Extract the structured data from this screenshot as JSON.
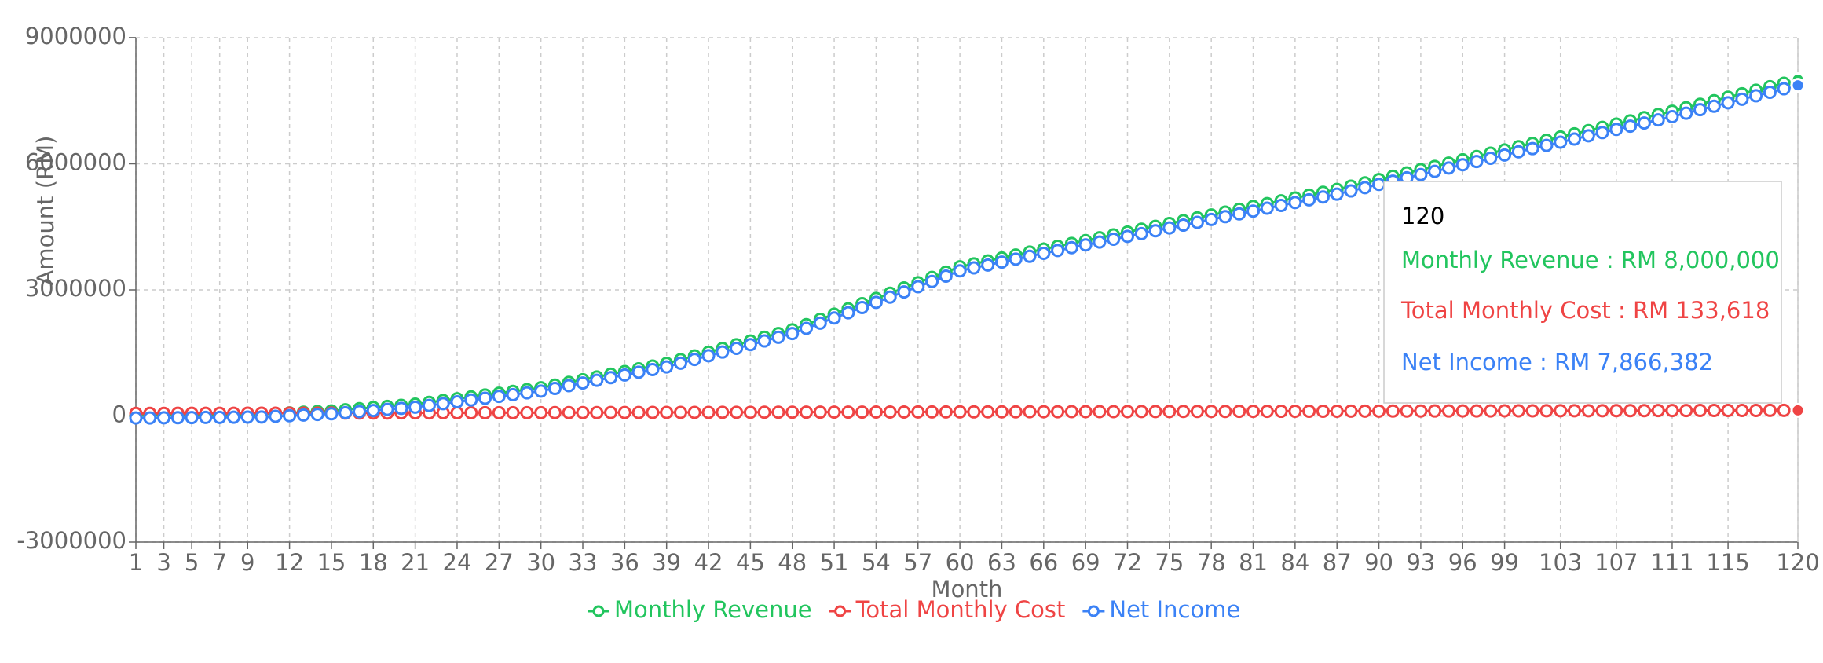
{
  "chart_data": {
    "type": "line",
    "x_label": "Month",
    "y_label": "Amount (RM)",
    "categories": [
      1,
      null,
      3,
      null,
      5,
      null,
      7,
      null,
      9,
      null,
      null,
      12,
      null,
      null,
      15,
      null,
      null,
      18,
      null,
      null,
      21,
      null,
      null,
      24,
      null,
      null,
      27,
      null,
      null,
      30,
      null,
      null,
      33,
      null,
      null,
      36,
      null,
      null,
      39,
      null,
      null,
      42,
      null,
      null,
      45,
      null,
      null,
      48,
      null,
      null,
      51,
      null,
      null,
      54,
      null,
      null,
      57,
      null,
      null,
      60,
      null,
      null,
      63,
      null,
      null,
      66,
      null,
      null,
      69,
      null,
      null,
      72,
      null,
      null,
      75,
      null,
      null,
      78,
      null,
      null,
      81,
      null,
      null,
      84,
      null,
      null,
      87,
      null,
      null,
      90,
      null,
      null,
      93,
      null,
      null,
      96,
      null,
      null,
      99,
      null,
      null,
      null,
      103,
      null,
      null,
      null,
      107,
      null,
      null,
      null,
      111,
      null,
      null,
      null,
      115,
      null,
      null,
      null,
      null,
      120
    ],
    "series": [
      {
        "name": "Monthly Revenue",
        "color": "#22c55e",
        "values": [
          10000,
          13000,
          17000,
          20000,
          23000,
          27000,
          30000,
          33000,
          37000,
          40000,
          56000,
          72000,
          88000,
          104000,
          120000,
          147000,
          173000,
          200000,
          227000,
          253000,
          280000,
          323000,
          367000,
          410000,
          453000,
          497000,
          540000,
          583000,
          627000,
          670000,
          734000,
          799000,
          863000,
          928000,
          992000,
          1057000,
          1121000,
          1186000,
          1250000,
          1339000,
          1428000,
          1517000,
          1606000,
          1694000,
          1783000,
          1872000,
          1961000,
          2050000,
          2174000,
          2299000,
          2423000,
          2548000,
          2672000,
          2797000,
          2921000,
          3046000,
          3170000,
          3297000,
          3423000,
          3550000,
          3620000,
          3690000,
          3760000,
          3830000,
          3900000,
          3970000,
          4038000,
          4106000,
          4173000,
          4241000,
          4309000,
          4377000,
          4444000,
          4512000,
          4580000,
          4648000,
          4715000,
          4783000,
          4850000,
          4918000,
          4985000,
          5053000,
          5120000,
          5188000,
          5255000,
          5323000,
          5390000,
          5468000,
          5547000,
          5625000,
          5703000,
          5782000,
          5860000,
          5938000,
          6017000,
          6095000,
          6173000,
          6252000,
          6330000,
          6407000,
          6483000,
          6560000,
          6637000,
          6713000,
          6790000,
          6867000,
          6943000,
          7020000,
          7097000,
          7173000,
          7250000,
          7333000,
          7417000,
          7500000,
          7583000,
          7667000,
          7750000,
          7833000,
          7917000,
          8000000
        ]
      },
      {
        "name": "Total Monthly Cost",
        "color": "#ef4444",
        "values": [
          60000,
          61000,
          61000,
          62000,
          62000,
          63000,
          64000,
          64000,
          65000,
          66000,
          66000,
          67000,
          67000,
          68000,
          69000,
          69000,
          70000,
          71000,
          71000,
          72000,
          72000,
          73000,
          74000,
          74000,
          75000,
          76000,
          76000,
          77000,
          77000,
          78000,
          79000,
          79000,
          80000,
          80000,
          81000,
          82000,
          82000,
          83000,
          84000,
          84000,
          85000,
          85000,
          86000,
          87000,
          87000,
          88000,
          89000,
          89000,
          90000,
          90000,
          91000,
          92000,
          92000,
          93000,
          93000,
          94000,
          95000,
          95000,
          96000,
          97000,
          97000,
          98000,
          98000,
          99000,
          100000,
          100000,
          101000,
          102000,
          102000,
          103000,
          103000,
          104000,
          105000,
          105000,
          106000,
          107000,
          107000,
          108000,
          108000,
          109000,
          110000,
          110000,
          111000,
          111000,
          112000,
          113000,
          113000,
          114000,
          115000,
          115000,
          116000,
          116000,
          117000,
          118000,
          118000,
          119000,
          120000,
          120000,
          121000,
          121000,
          122000,
          123000,
          123000,
          124000,
          125000,
          125000,
          126000,
          126000,
          127000,
          128000,
          128000,
          129000,
          130000,
          130000,
          131000,
          131000,
          132000,
          133000,
          133000,
          133618
        ]
      },
      {
        "name": "Net Income",
        "color": "#3b82f6",
        "values": [
          -50000,
          -48000,
          -44000,
          -42000,
          -39000,
          -36000,
          -34000,
          -31000,
          -28000,
          -26000,
          -10000,
          5000,
          21000,
          36000,
          51000,
          78000,
          103000,
          129000,
          156000,
          181000,
          208000,
          250000,
          293000,
          336000,
          378000,
          421000,
          464000,
          506000,
          550000,
          592000,
          655000,
          720000,
          783000,
          848000,
          911000,
          975000,
          1039000,
          1103000,
          1166000,
          1255000,
          1343000,
          1432000,
          1520000,
          1607000,
          1696000,
          1784000,
          1872000,
          1961000,
          2084000,
          2209000,
          2332000,
          2456000,
          2580000,
          2704000,
          2828000,
          2952000,
          3075000,
          3202000,
          3327000,
          3453000,
          3523000,
          3592000,
          3662000,
          3731000,
          3800000,
          3870000,
          3937000,
          4004000,
          4071000,
          4138000,
          4206000,
          4273000,
          4339000,
          4407000,
          4474000,
          4541000,
          4608000,
          4675000,
          4742000,
          4809000,
          4875000,
          4943000,
          5009000,
          5077000,
          5143000,
          5210000,
          5277000,
          5354000,
          5432000,
          5510000,
          5587000,
          5666000,
          5743000,
          5820000,
          5899000,
          5976000,
          6053000,
          6132000,
          6209000,
          6286000,
          6361000,
          6437000,
          6514000,
          6589000,
          6665000,
          6742000,
          6817000,
          6894000,
          6970000,
          7045000,
          7122000,
          7204000,
          7287000,
          7370000,
          7452000,
          7536000,
          7618000,
          7700000,
          7784000,
          7866382
        ]
      }
    ],
    "ylim": [
      -3000000,
      9000000
    ],
    "yticks": [
      -3000000,
      0,
      3000000,
      6000000,
      9000000
    ],
    "grid": true,
    "legend": "bottom",
    "tooltip": {
      "label": "120",
      "items": [
        "Monthly Revenue : RM 8,000,000",
        "Total Monthly Cost : RM 133,618",
        "Net Income : RM 7,866,382"
      ]
    }
  }
}
